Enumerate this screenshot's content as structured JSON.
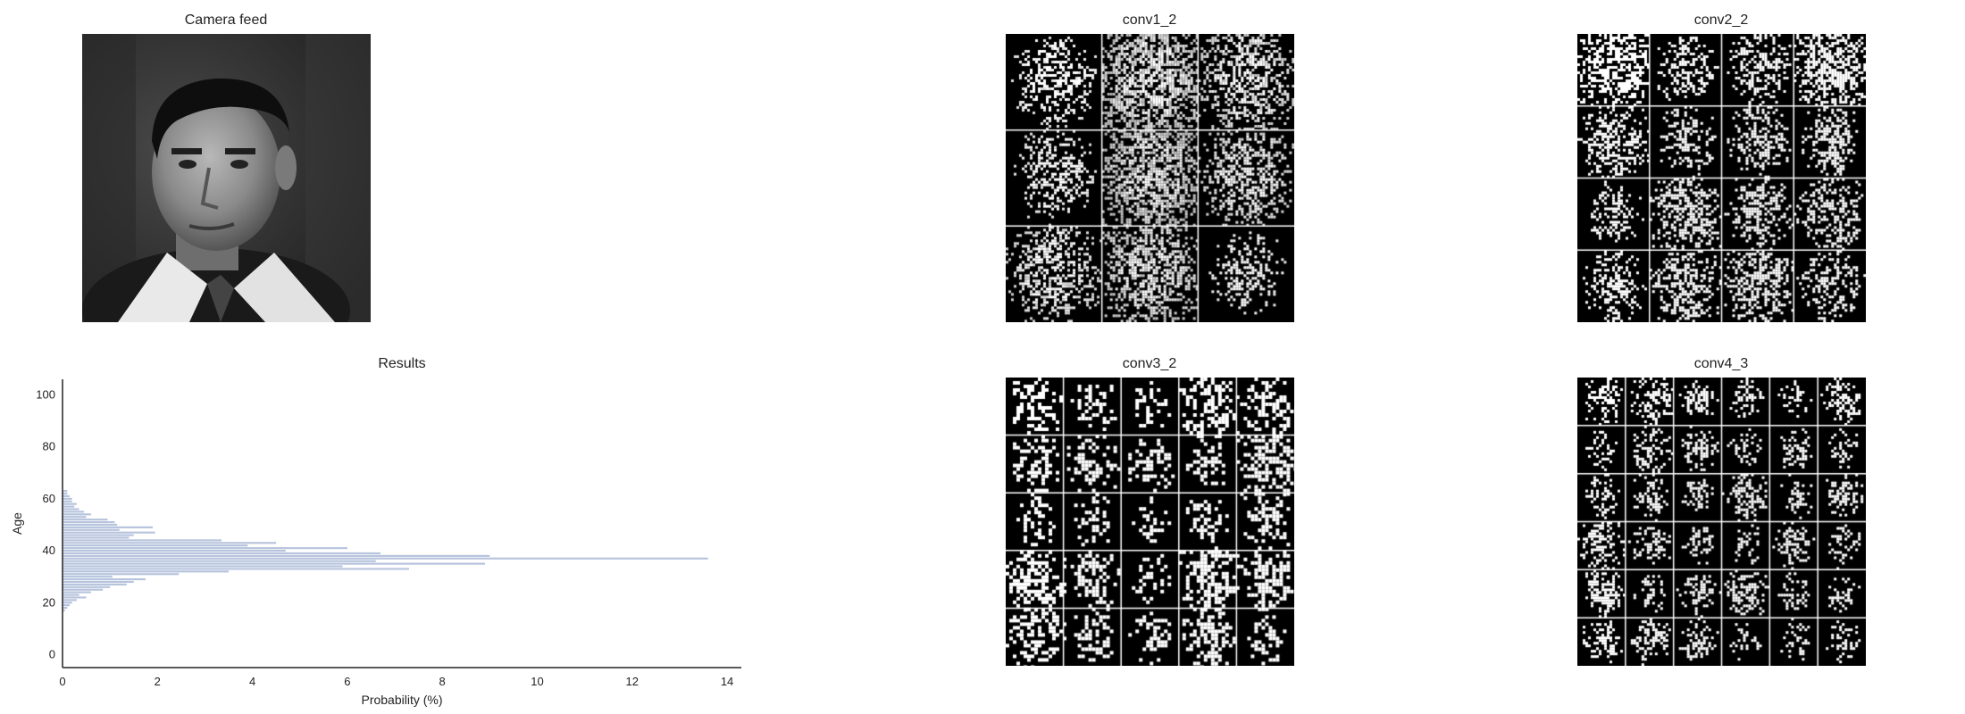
{
  "panels": {
    "camera_feed": {
      "title": "Camera feed",
      "image": "grayscale-face-photo"
    },
    "conv1_2": {
      "title": "conv1_2",
      "grid": [
        3,
        3
      ]
    },
    "conv2_2": {
      "title": "conv2_2",
      "grid": [
        4,
        4
      ]
    },
    "conv3_2": {
      "title": "conv3_2",
      "grid": [
        5,
        5
      ]
    },
    "conv4_3": {
      "title": "conv4_3",
      "grid": [
        6,
        6
      ]
    }
  },
  "results": {
    "title": "Results"
  },
  "colors": {
    "bar": "#b7c4dd",
    "axis": "#222222",
    "background": "#ffffff"
  },
  "chart_data": {
    "type": "bar",
    "orientation": "horizontal",
    "title": "Results",
    "xlabel": "Probability (%)",
    "ylabel": "Age",
    "xlim": [
      0,
      14.3
    ],
    "ylim": [
      -5,
      106
    ],
    "x_ticks": [
      0,
      2,
      4,
      6,
      8,
      10,
      12,
      14
    ],
    "y_ticks": [
      0,
      20,
      40,
      60,
      80,
      100
    ],
    "grid": false,
    "categories": [
      17,
      18,
      19,
      20,
      21,
      22,
      23,
      24,
      25,
      26,
      27,
      28,
      29,
      30,
      31,
      32,
      33,
      34,
      35,
      36,
      37,
      38,
      39,
      40,
      41,
      42,
      43,
      44,
      45,
      46,
      47,
      48,
      49,
      50,
      51,
      52,
      53,
      54,
      55,
      56,
      57,
      58,
      59,
      60,
      61,
      62,
      63
    ],
    "values": [
      0.05,
      0.1,
      0.15,
      0.2,
      0.3,
      0.5,
      0.35,
      0.6,
      0.85,
      1.0,
      1.35,
      1.5,
      1.75,
      1.05,
      2.45,
      3.5,
      7.3,
      5.9,
      8.9,
      6.6,
      13.6,
      9.0,
      6.7,
      4.7,
      6.0,
      3.9,
      4.5,
      3.35,
      1.4,
      1.5,
      1.95,
      1.2,
      1.9,
      1.15,
      1.1,
      0.95,
      0.5,
      0.6,
      0.45,
      0.35,
      0.25,
      0.3,
      0.2,
      0.2,
      0.15,
      0.1,
      0.1
    ]
  }
}
